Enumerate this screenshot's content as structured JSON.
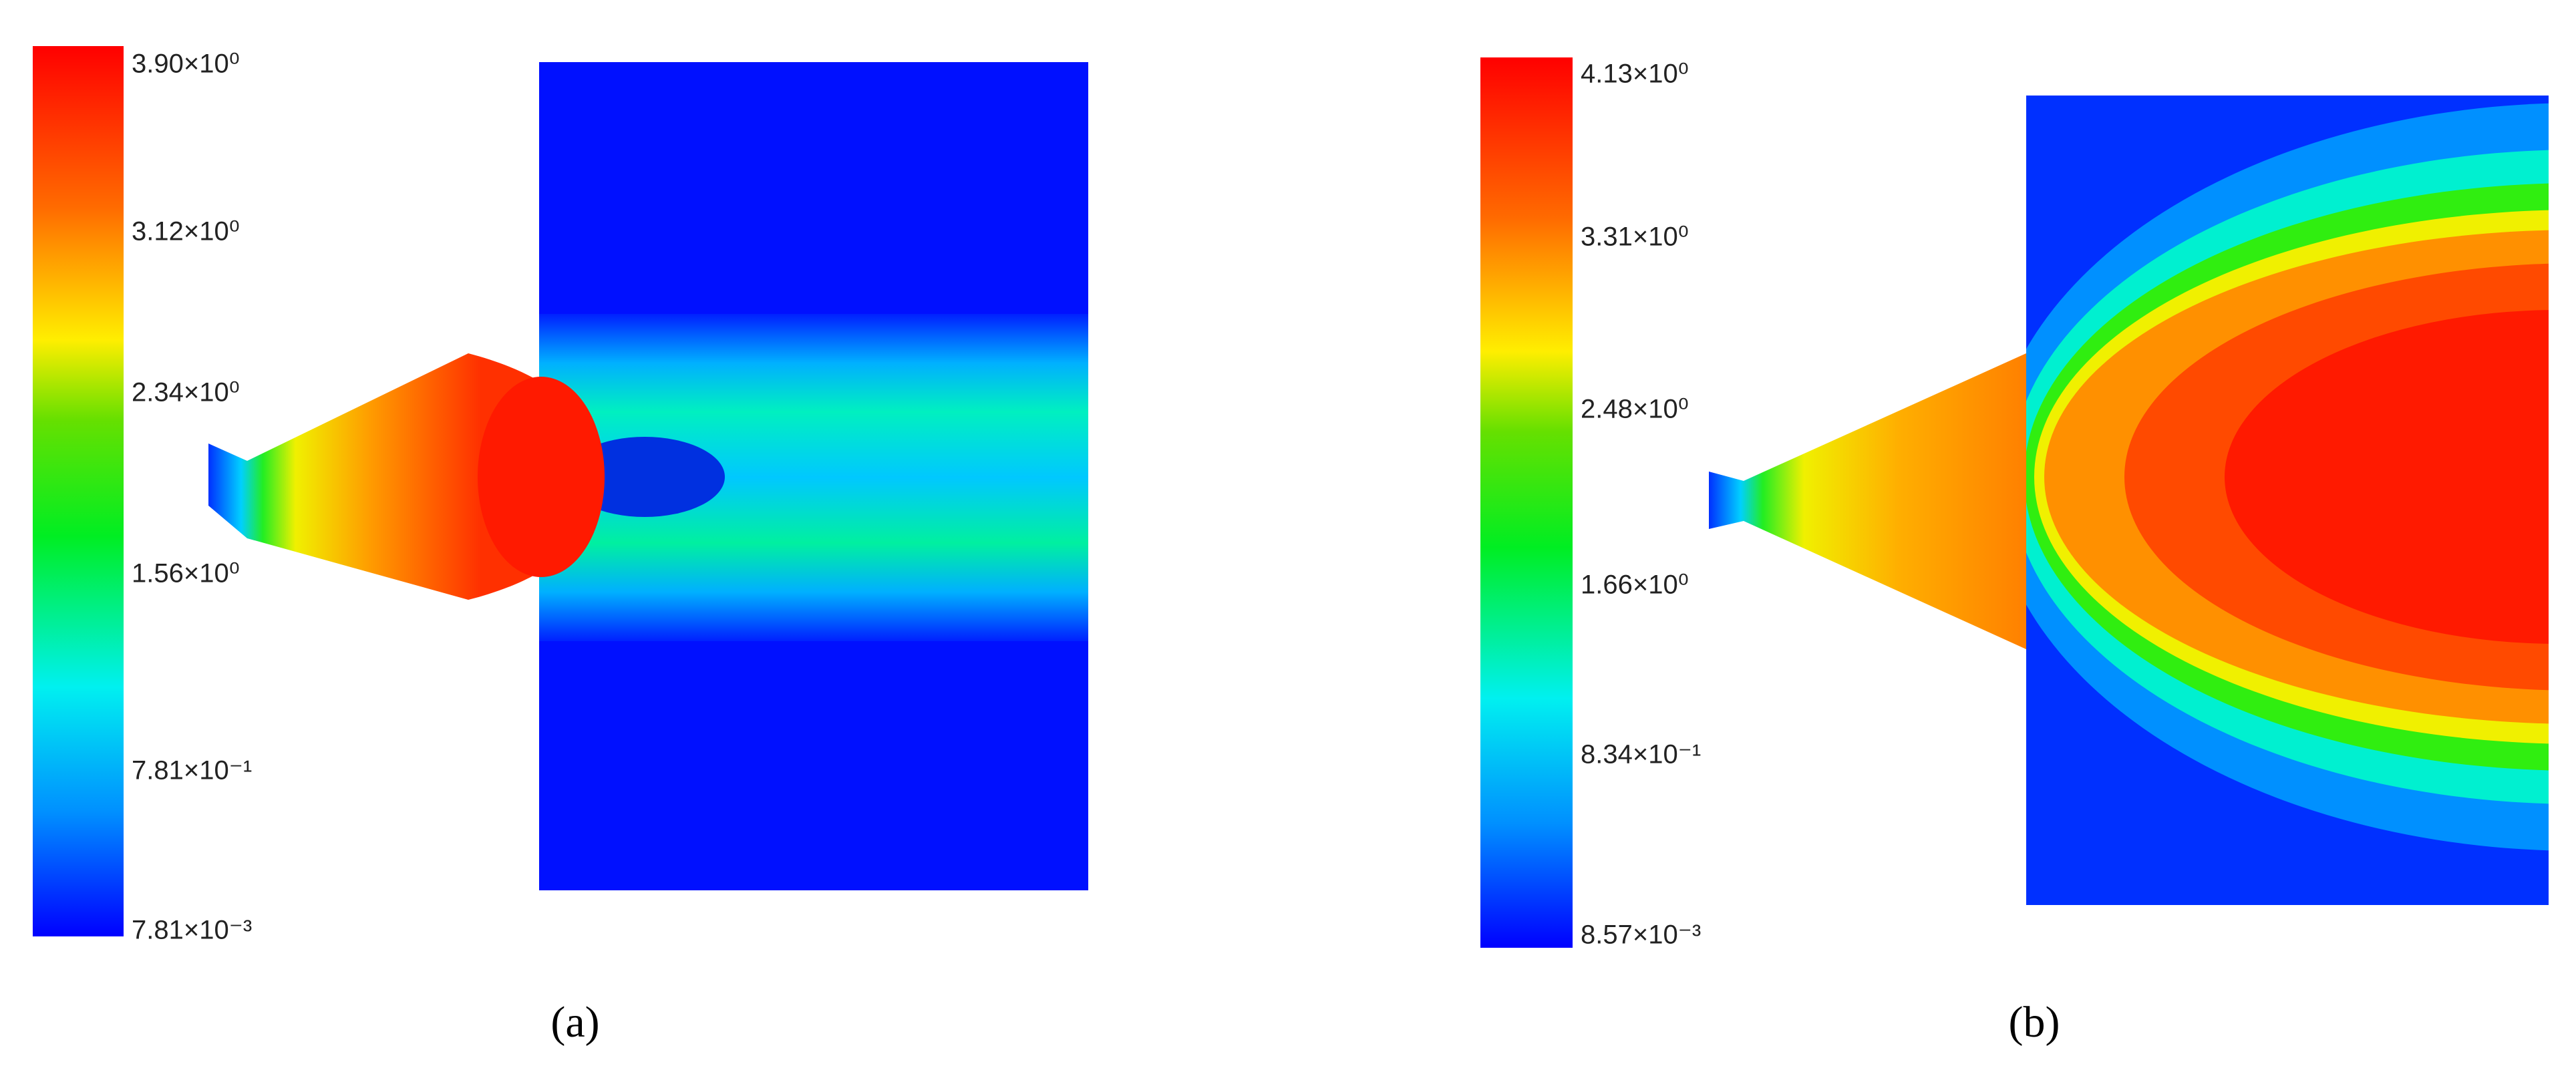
{
  "panels": [
    {
      "colorbar_labels": [
        "3.90×10⁰",
        "3.12×10⁰",
        "2.34×10⁰",
        "1.56×10⁰",
        "7.81×10⁻¹",
        "7.81×10⁻³"
      ],
      "caption": "(a)"
    },
    {
      "colorbar_labels": [
        "4.13×10⁰",
        "3.31×10⁰",
        "2.48×10⁰",
        "1.66×10⁰",
        "8.34×10⁻¹",
        "8.57×10⁻³"
      ],
      "caption": "(b)"
    }
  ]
}
